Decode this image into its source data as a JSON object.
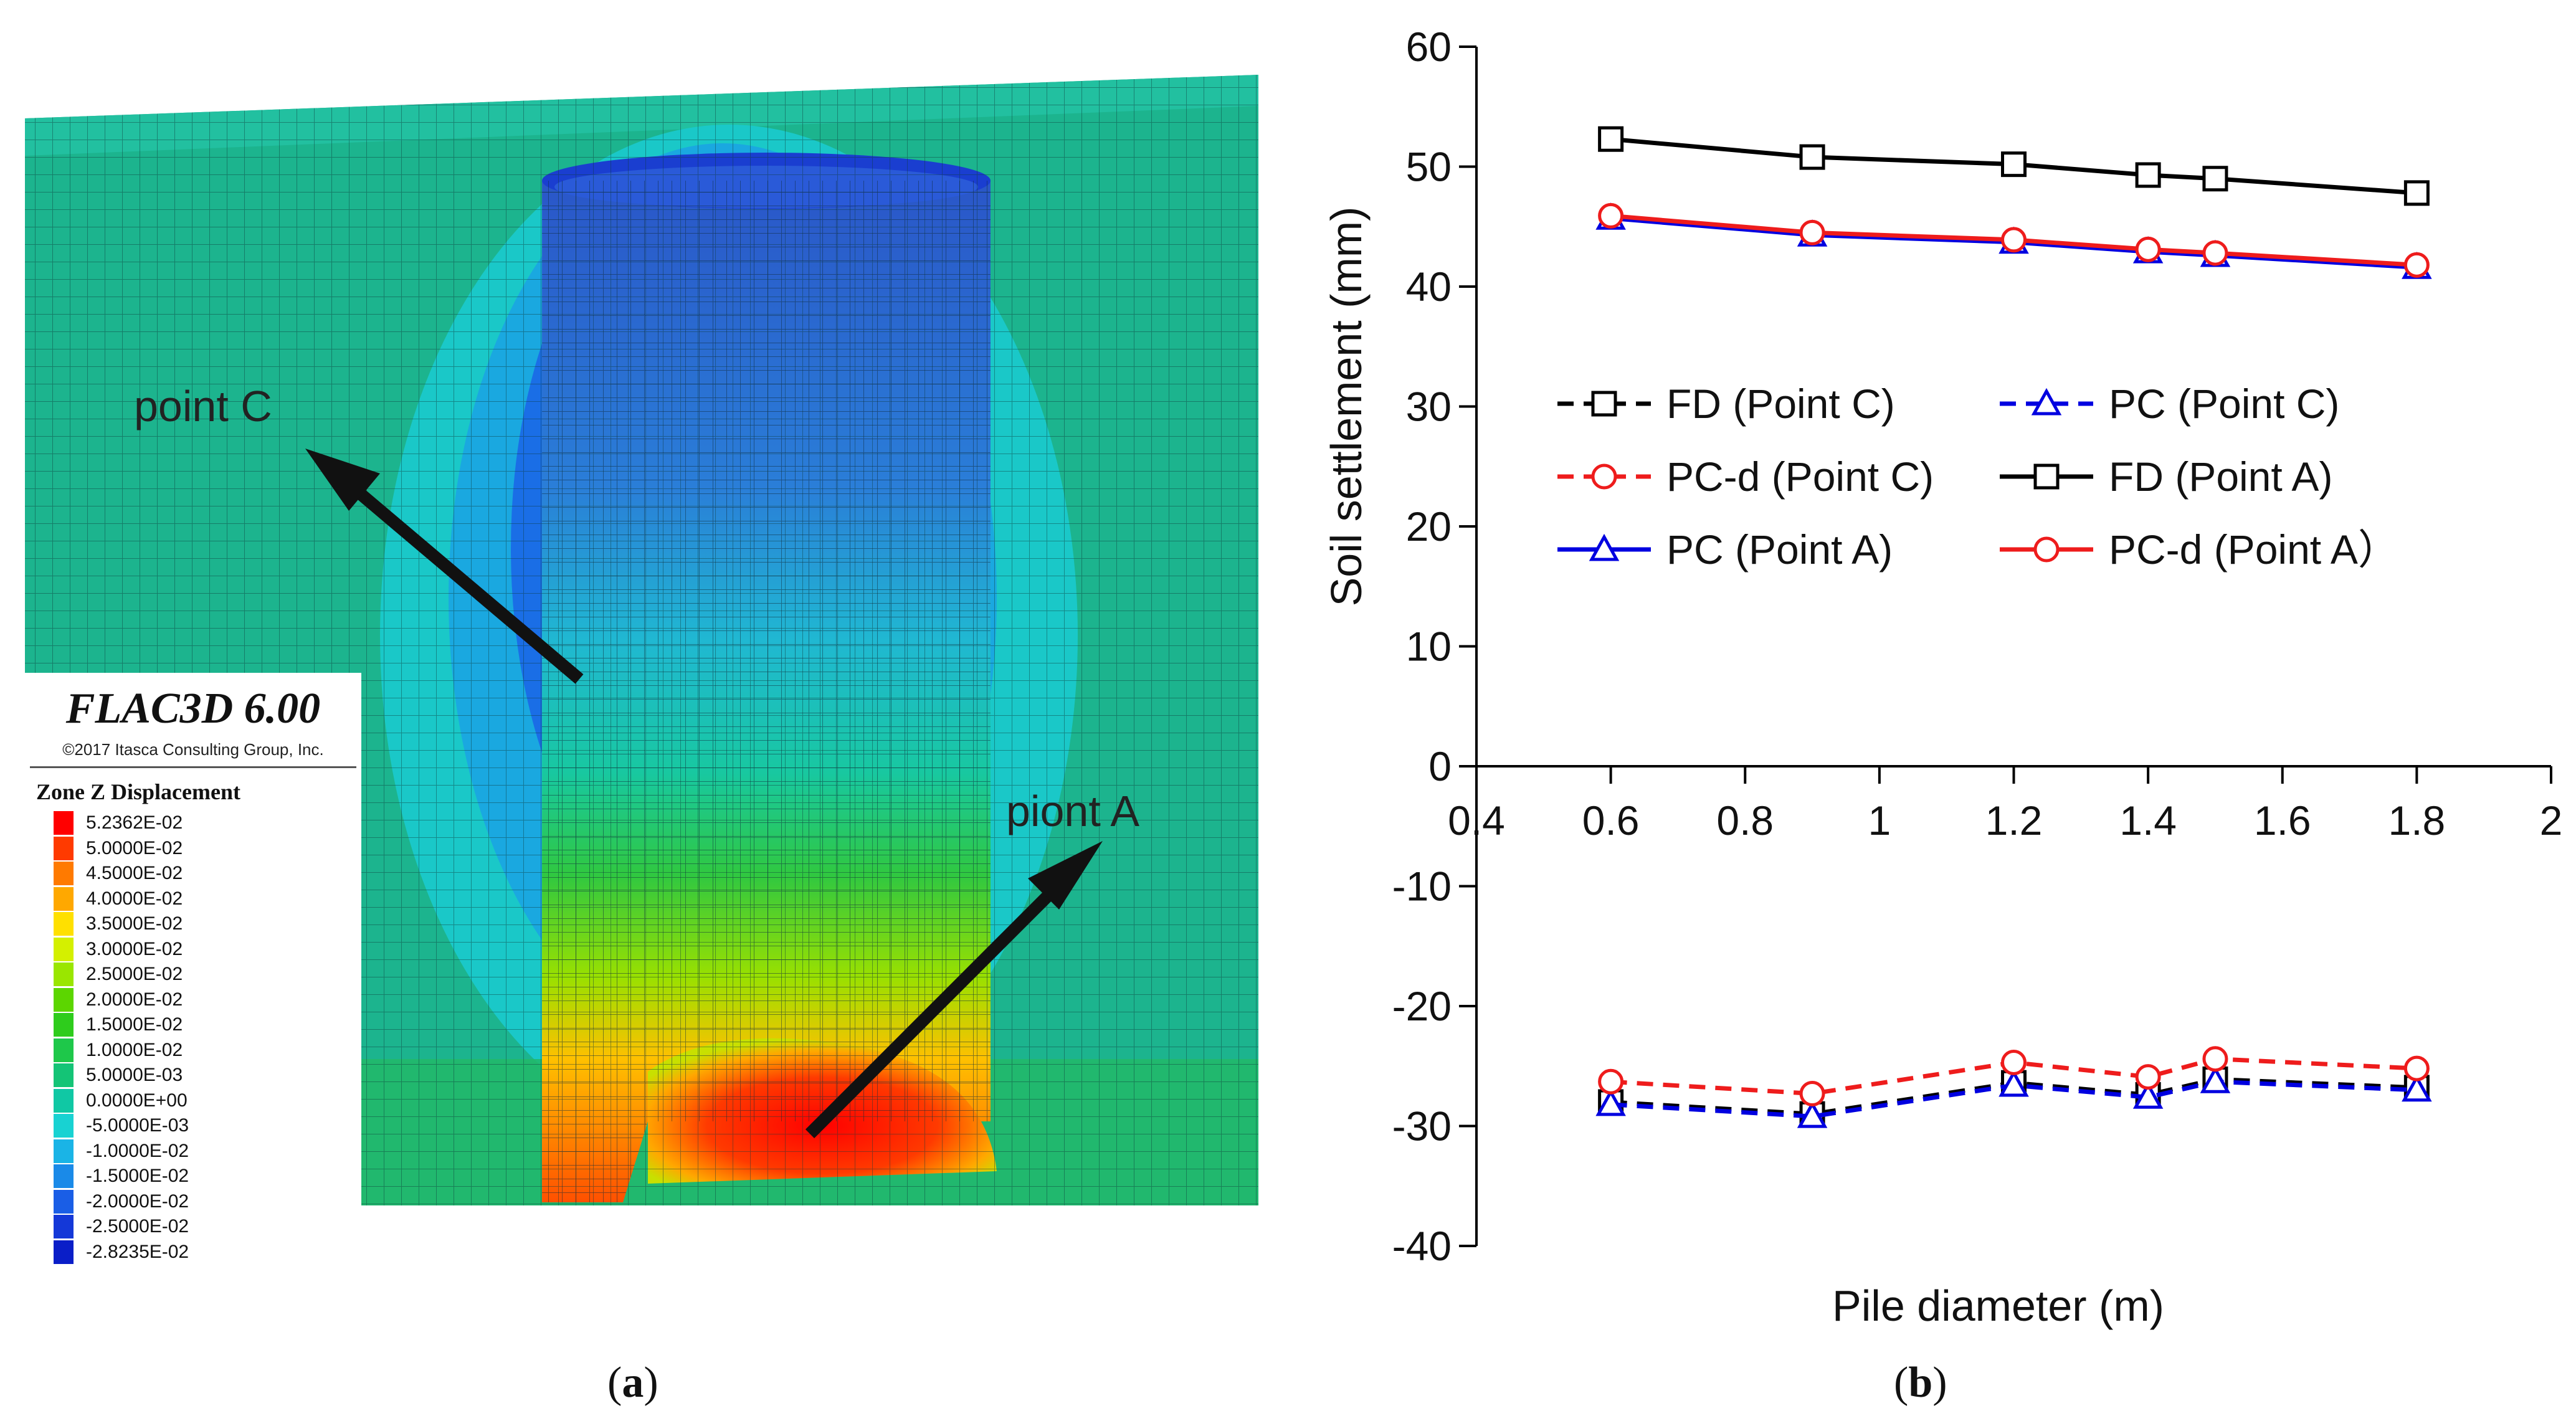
{
  "panel_a": {
    "label": "a",
    "software": "FLAC3D 6.00",
    "copyright": "©2017 Itasca Consulting Group, Inc.",
    "legend_title": "Zone Z Displacement",
    "contour_levels": [
      {
        "value": "5.2362E-02",
        "color": "#ff0000"
      },
      {
        "value": "5.0000E-02",
        "color": "#ff3a00"
      },
      {
        "value": "4.5000E-02",
        "color": "#ff7a00"
      },
      {
        "value": "4.0000E-02",
        "color": "#ffa800"
      },
      {
        "value": "3.5000E-02",
        "color": "#ffe000"
      },
      {
        "value": "3.0000E-02",
        "color": "#d4f000"
      },
      {
        "value": "2.5000E-02",
        "color": "#9ae600"
      },
      {
        "value": "2.0000E-02",
        "color": "#5cd600"
      },
      {
        "value": "1.5000E-02",
        "color": "#2ecc1c"
      },
      {
        "value": "1.0000E-02",
        "color": "#1ec84a"
      },
      {
        "value": "5.0000E-03",
        "color": "#14c476"
      },
      {
        "value": "0.0000E+00",
        "color": "#10c8a4"
      },
      {
        "value": "-5.0000E-03",
        "color": "#18d2d2"
      },
      {
        "value": "-1.0000E-02",
        "color": "#1ab4e6"
      },
      {
        "value": "-1.5000E-02",
        "color": "#1a8ae8"
      },
      {
        "value": "-2.0000E-02",
        "color": "#1a5ee6"
      },
      {
        "value": "-2.5000E-02",
        "color": "#1438d8"
      },
      {
        "value": "-2.8235E-02",
        "color": "#0a1ec8"
      }
    ],
    "annotations": {
      "point_c": "point C",
      "point_a": "piont A"
    }
  },
  "panel_b": {
    "label": "b",
    "chart_data": {
      "type": "line",
      "xlabel": "Pile diameter (m)",
      "ylabel": "Soil settlement (mm)",
      "xlim": [
        0.4,
        2
      ],
      "ylim": [
        -40,
        60
      ],
      "x_ticks": [
        0.4,
        0.6,
        0.8,
        1,
        1.2,
        1.4,
        1.6,
        1.8,
        2
      ],
      "x_tick_labels": [
        "0.4",
        "0.6",
        "0.8",
        "1",
        "1.2",
        "1.4",
        "1.6",
        "1.8",
        "2"
      ],
      "y_ticks": [
        -40,
        -30,
        -20,
        -10,
        0,
        10,
        20,
        30,
        40,
        50,
        60
      ],
      "y_tick_labels": [
        "-40",
        "-30",
        "-20",
        "-10",
        "0",
        "10",
        "20",
        "30",
        "40",
        "50",
        "60"
      ],
      "x": [
        0.6,
        0.9,
        1.2,
        1.4,
        1.5,
        1.8
      ],
      "legend_position": "center-right",
      "series": [
        {
          "name": "FD (Point C)",
          "values": [
            -28.0,
            -29.0,
            -26.4,
            -27.4,
            -26.1,
            -26.8
          ],
          "color": "#000000",
          "dashed": true,
          "marker": "square"
        },
        {
          "name": "PC (Point C)",
          "values": [
            -28.2,
            -29.2,
            -26.6,
            -27.6,
            -26.3,
            -27.0
          ],
          "color": "#0000e0",
          "dashed": true,
          "marker": "triangle"
        },
        {
          "name": "PC-d (Point C)",
          "values": [
            -26.3,
            -27.3,
            -24.7,
            -25.9,
            -24.4,
            -25.2
          ],
          "color": "#ee1c1c",
          "dashed": true,
          "marker": "circle"
        },
        {
          "name": "FD (Point A)",
          "values": [
            52.3,
            50.8,
            50.2,
            49.3,
            49.0,
            47.8
          ],
          "color": "#000000",
          "dashed": false,
          "marker": "square"
        },
        {
          "name": "PC (Point A)",
          "values": [
            45.7,
            44.3,
            43.7,
            42.9,
            42.6,
            41.6
          ],
          "color": "#0000e0",
          "dashed": false,
          "marker": "triangle"
        },
        {
          "name": "PC-d (Point A）",
          "values": [
            45.9,
            44.5,
            43.9,
            43.1,
            42.8,
            41.8
          ],
          "color": "#ee1c1c",
          "dashed": false,
          "marker": "circle"
        }
      ]
    }
  }
}
